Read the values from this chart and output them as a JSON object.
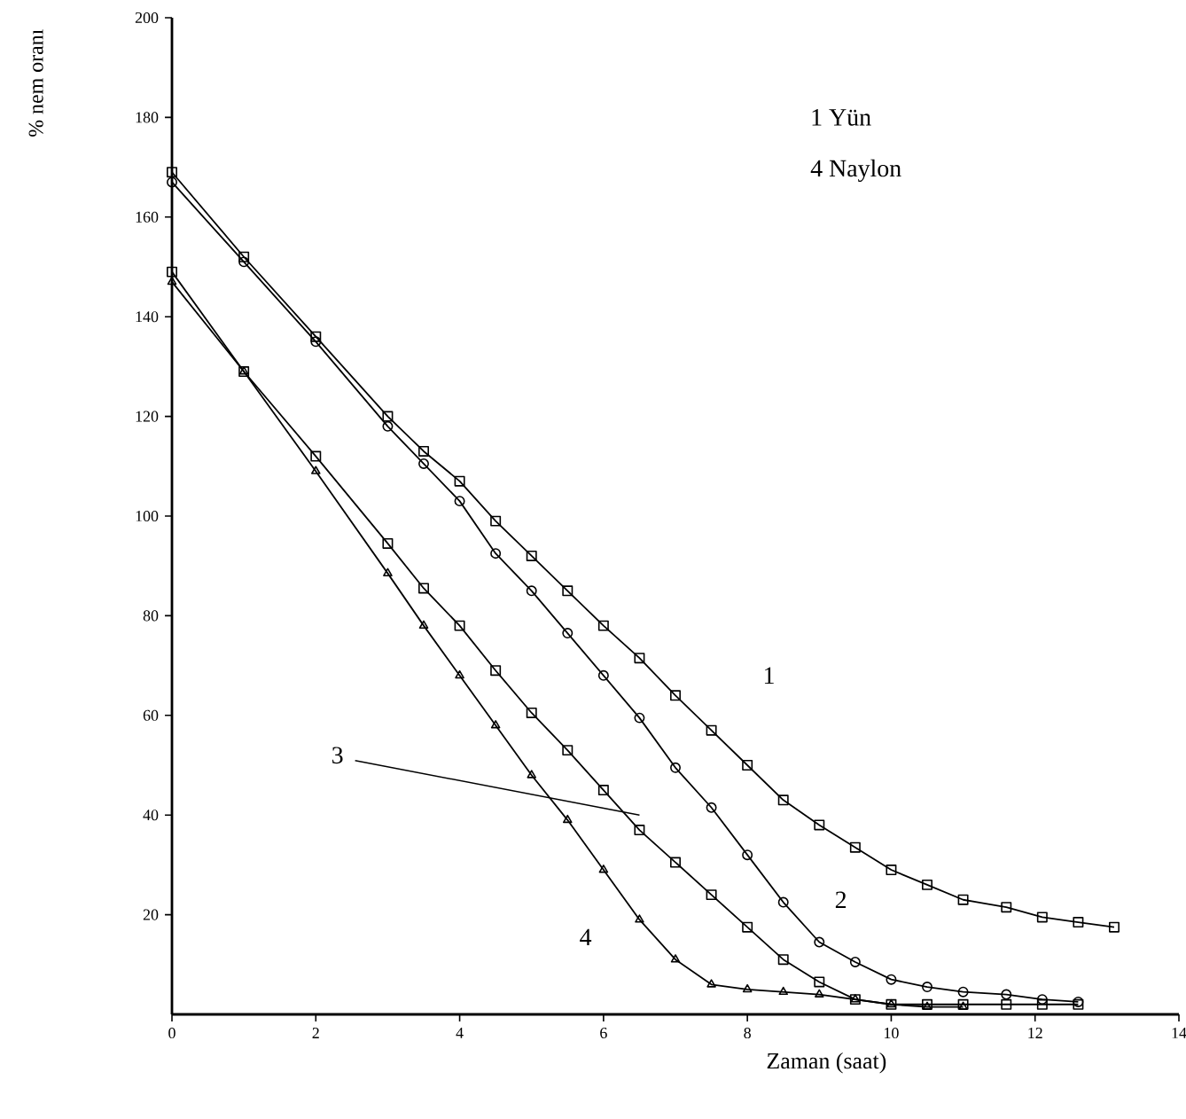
{
  "chart_data": {
    "type": "line",
    "xlabel": "Zaman (saat)",
    "ylabel": "% nem oranı",
    "xlim": [
      0,
      14
    ],
    "xticks": [
      0,
      2,
      4,
      6,
      8,
      10,
      12,
      14
    ],
    "ylim": [
      0,
      200
    ],
    "yticks": [
      20,
      40,
      60,
      80,
      100,
      120,
      140,
      160,
      180,
      200
    ],
    "grid": false,
    "line_style": "solid",
    "series": [
      {
        "color": "#000000",
        "marker": "square",
        "x": [
          0,
          1,
          2,
          3,
          3.5,
          4,
          4.5,
          5,
          5.5,
          6,
          6.5,
          7,
          7.5,
          8,
          8.5,
          9,
          9.5,
          10,
          10.5,
          11,
          11.6,
          12.1,
          12.6,
          13.1
        ],
        "values": [
          169,
          152,
          136,
          120,
          113,
          107,
          99,
          92,
          85,
          78,
          71.5,
          64,
          57,
          50,
          43,
          38,
          33.5,
          29,
          26,
          23,
          21.5,
          19.5,
          18.5,
          17.5
        ]
      },
      {
        "color": "#000000",
        "marker": "circle",
        "x": [
          0,
          1,
          2,
          3,
          3.5,
          4,
          4.5,
          5,
          5.5,
          6,
          6.5,
          7,
          7.5,
          8,
          8.5,
          9,
          9.5,
          10,
          10.5,
          11,
          11.6,
          12.1,
          12.6
        ],
        "values": [
          167,
          151,
          135,
          118,
          110.5,
          103,
          92.5,
          85,
          76.5,
          68,
          59.5,
          49.5,
          41.5,
          32,
          22.5,
          14.5,
          10.5,
          7,
          5.5,
          4.5,
          4,
          3,
          2.5
        ]
      },
      {
        "color": "#000000",
        "marker": "square",
        "x": [
          0,
          1,
          2,
          3,
          3.5,
          4,
          4.5,
          5,
          5.5,
          6,
          6.5,
          7,
          7.5,
          8,
          8.5,
          9,
          9.5,
          10,
          10.5,
          11,
          11.6,
          12.1,
          12.6
        ],
        "values": [
          149,
          129,
          112,
          94.5,
          85.5,
          78,
          69,
          60.5,
          53,
          45,
          37,
          30.5,
          24,
          17.5,
          11,
          6.5,
          3,
          2,
          2,
          2,
          2,
          2,
          2
        ]
      },
      {
        "color": "#000000",
        "marker": "triangle",
        "x": [
          0,
          1,
          2,
          3,
          3.5,
          4,
          4.5,
          5,
          5.5,
          6,
          6.5,
          7,
          7.5,
          8,
          8.5,
          9,
          9.5,
          10,
          10.5,
          11
        ],
        "values": [
          147,
          129,
          109,
          88.5,
          78,
          68,
          58,
          48,
          39,
          29,
          19,
          11,
          6,
          5,
          4.5,
          4,
          3,
          2,
          1.5,
          1.5
        ]
      }
    ],
    "annotations": [
      "1",
      "2",
      "3",
      "4",
      "1 Yün",
      "4 Naylon"
    ]
  }
}
